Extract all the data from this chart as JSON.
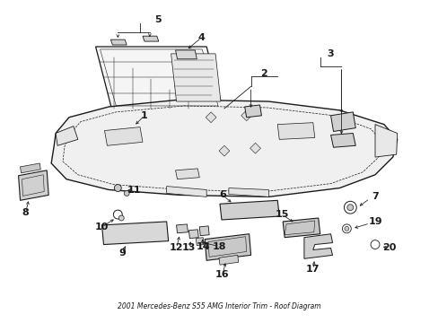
{
  "title": "2001 Mercedes-Benz S55 AMG Interior Trim - Roof Diagram",
  "bg_color": "#ffffff",
  "line_color": "#1a1a1a",
  "fig_width": 4.89,
  "fig_height": 3.6,
  "dpi": 100
}
